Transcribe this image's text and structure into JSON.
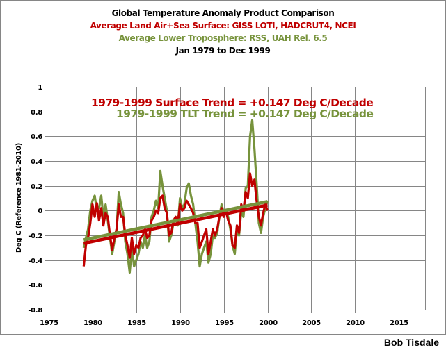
{
  "chart_data": {
    "type": "line",
    "title": "Global Temperature Anomaly Product Comparison",
    "subtitles": [
      {
        "text": "Average Land Air+Sea Surface: GISS LOTI, HADCRUT4, NCEI",
        "color": "#c00000"
      },
      {
        "text": "Average Lower Troposphere: RSS, UAH Rel. 6.5",
        "color": "#77933c"
      }
    ],
    "period": "Jan 1979 to Dec 1999",
    "xlabel": "",
    "ylabel": "Deg C (Reference 1981-2010)",
    "xlim": [
      1975,
      2018
    ],
    "ylim": [
      -0.8,
      1
    ],
    "xticks": [
      "1975",
      "1980",
      "1985",
      "1990",
      "1995",
      "2000",
      "2005",
      "2010",
      "2015"
    ],
    "xtick_values": [
      1975,
      1980,
      1985,
      1990,
      1995,
      2000,
      2005,
      2010,
      2015
    ],
    "yticks": [
      "1",
      "0.8",
      "0.6",
      "0.4",
      "0.2",
      "0",
      "-0.2",
      "-0.4",
      "-0.6",
      "-0.8"
    ],
    "ytick_values": [
      1,
      0.8,
      0.6,
      0.4,
      0.2,
      0,
      -0.2,
      -0.4,
      -0.6,
      -0.8
    ],
    "grid": true,
    "x": [
      1979.0,
      1979.25,
      1979.5,
      1979.75,
      1980.0,
      1980.25,
      1980.5,
      1980.75,
      1981.0,
      1981.25,
      1981.5,
      1981.75,
      1982.0,
      1982.25,
      1982.5,
      1982.75,
      1983.0,
      1983.25,
      1983.5,
      1983.75,
      1984.0,
      1984.25,
      1984.5,
      1984.75,
      1985.0,
      1985.25,
      1985.5,
      1985.75,
      1986.0,
      1986.25,
      1986.5,
      1986.75,
      1987.0,
      1987.25,
      1987.5,
      1987.75,
      1988.0,
      1988.25,
      1988.5,
      1988.75,
      1989.0,
      1989.25,
      1989.5,
      1989.75,
      1990.0,
      1990.25,
      1990.5,
      1990.75,
      1991.0,
      1991.25,
      1991.5,
      1991.75,
      1992.0,
      1992.25,
      1992.5,
      1992.75,
      1993.0,
      1993.25,
      1993.5,
      1993.75,
      1994.0,
      1994.25,
      1994.5,
      1994.75,
      1995.0,
      1995.25,
      1995.5,
      1995.75,
      1996.0,
      1996.25,
      1996.5,
      1996.75,
      1997.0,
      1997.25,
      1997.5,
      1997.75,
      1998.0,
      1998.25,
      1998.5,
      1998.75,
      1999.0,
      1999.25,
      1999.5,
      1999.75,
      2000.0
    ],
    "series": [
      {
        "name": "Average Land Air+Sea Surface",
        "color": "#c00000",
        "values": [
          -0.45,
          -0.28,
          -0.22,
          -0.1,
          0.05,
          -0.05,
          0.06,
          -0.08,
          0.02,
          -0.12,
          -0.02,
          -0.05,
          -0.2,
          -0.32,
          -0.22,
          -0.15,
          0.05,
          -0.05,
          -0.05,
          -0.2,
          -0.28,
          -0.38,
          -0.22,
          -0.35,
          -0.28,
          -0.3,
          -0.22,
          -0.2,
          -0.15,
          -0.22,
          -0.2,
          -0.08,
          -0.05,
          0.0,
          -0.02,
          0.1,
          0.12,
          0.02,
          -0.02,
          -0.2,
          -0.18,
          -0.08,
          -0.05,
          -0.1,
          0.05,
          0.0,
          0.02,
          0.08,
          0.05,
          0.02,
          -0.02,
          -0.1,
          -0.1,
          -0.3,
          -0.25,
          -0.2,
          -0.15,
          -0.35,
          -0.25,
          -0.15,
          -0.2,
          -0.15,
          -0.05,
          0.02,
          -0.05,
          0.0,
          -0.08,
          -0.12,
          -0.28,
          -0.3,
          -0.12,
          -0.18,
          0.05,
          0.0,
          0.15,
          0.1,
          0.3,
          0.2,
          0.25,
          0.08,
          -0.05,
          -0.12,
          -0.02,
          0.05,
          0.0
        ]
      },
      {
        "name": "Average Lower Troposphere",
        "color": "#77933c",
        "values": [
          -0.3,
          -0.22,
          -0.15,
          0.0,
          0.08,
          0.12,
          0.0,
          0.02,
          0.12,
          -0.05,
          0.05,
          -0.08,
          -0.22,
          -0.35,
          -0.25,
          -0.15,
          0.15,
          0.05,
          -0.02,
          -0.25,
          -0.35,
          -0.5,
          -0.3,
          -0.45,
          -0.4,
          -0.35,
          -0.25,
          -0.3,
          -0.2,
          -0.3,
          -0.25,
          -0.05,
          0.0,
          0.08,
          0.02,
          0.32,
          0.2,
          0.1,
          0.0,
          -0.25,
          -0.2,
          -0.1,
          -0.05,
          -0.12,
          0.1,
          0.02,
          0.05,
          0.18,
          0.22,
          0.12,
          0.05,
          -0.1,
          -0.25,
          -0.45,
          -0.35,
          -0.3,
          -0.25,
          -0.42,
          -0.35,
          -0.2,
          -0.22,
          -0.18,
          -0.05,
          0.05,
          -0.02,
          0.0,
          -0.05,
          -0.15,
          -0.28,
          -0.35,
          -0.15,
          -0.2,
          0.0,
          -0.05,
          0.18,
          0.2,
          0.6,
          0.73,
          0.5,
          0.22,
          -0.1,
          -0.18,
          -0.05,
          0.02,
          0.08
        ]
      }
    ],
    "trends": [
      {
        "name": "1979-1999 Surface Trend",
        "label": "1979-1999 Surface Trend = +0.147 Deg C/Decade",
        "color": "#c00000",
        "x": [
          1979,
          2000
        ],
        "y": [
          -0.264,
          0.045
        ]
      },
      {
        "name": "1979-1999 TLT Trend",
        "label": "1979-1999 TLT Trend = +0.147 Deg C/Decade",
        "color": "#77933c",
        "x": [
          1979,
          2000
        ],
        "y": [
          -0.236,
          0.073
        ]
      }
    ]
  },
  "author": "Bob Tisdale"
}
